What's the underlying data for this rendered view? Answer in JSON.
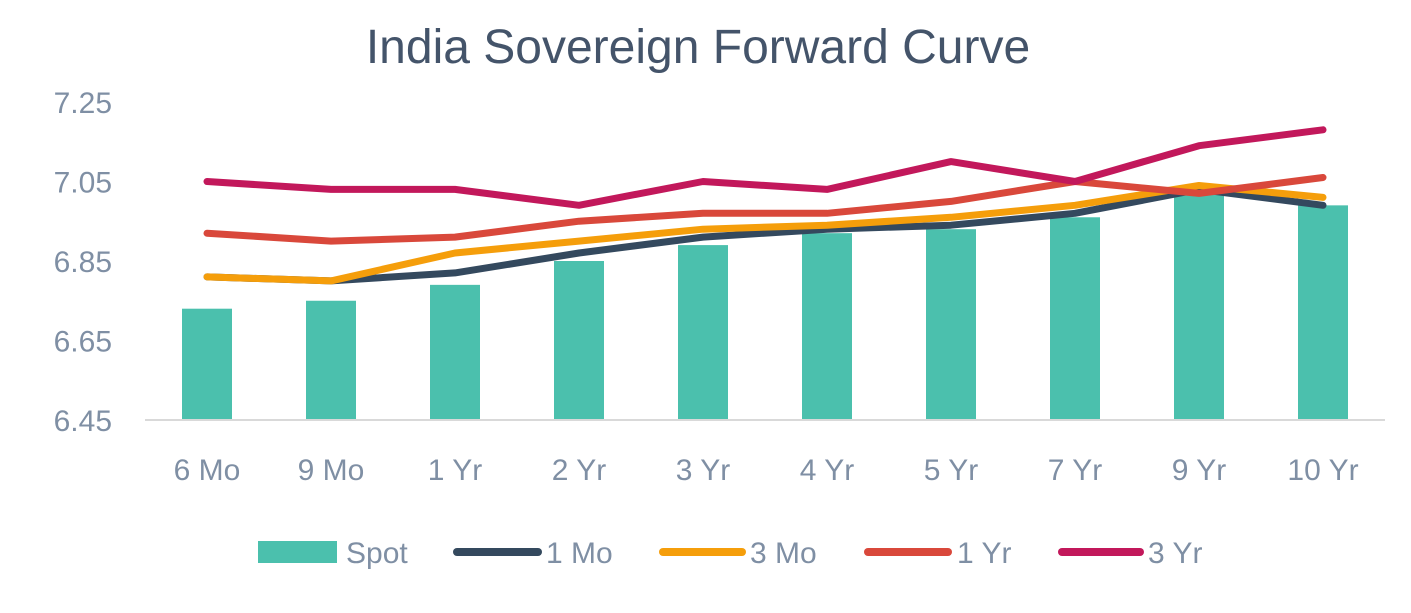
{
  "chart_data": {
    "type": "bar",
    "title": "India Sovereign Forward Curve",
    "xlabel": "",
    "ylabel": "",
    "ylim": [
      6.45,
      7.25
    ],
    "yticks": [
      "7.25",
      "7.05",
      "6.85",
      "6.65",
      "6.45"
    ],
    "categories": [
      "6 Mo",
      "9 Mo",
      "1 Yr",
      "2 Yr",
      "3 Yr",
      "4 Yr",
      "5 Yr",
      "7 Yr",
      "9 Yr",
      "10 Yr"
    ],
    "grid": false,
    "legend_position": "bottom",
    "series": [
      {
        "name": "Spot",
        "kind": "bar",
        "color": "#4bc0ad",
        "values": [
          6.73,
          6.75,
          6.79,
          6.85,
          6.89,
          6.92,
          6.93,
          6.96,
          7.02,
          6.99
        ]
      },
      {
        "name": "1 Mo",
        "kind": "line",
        "color": "#34495e",
        "values": [
          6.81,
          6.8,
          6.82,
          6.87,
          6.91,
          6.93,
          6.94,
          6.97,
          7.03,
          6.99
        ]
      },
      {
        "name": "3 Mo",
        "kind": "line",
        "color": "#f59e0b",
        "values": [
          6.81,
          6.8,
          6.87,
          6.9,
          6.93,
          6.94,
          6.96,
          6.99,
          7.04,
          7.01
        ]
      },
      {
        "name": "1 Yr",
        "kind": "line",
        "color": "#d9483b",
        "values": [
          6.92,
          6.9,
          6.91,
          6.95,
          6.97,
          6.97,
          7.0,
          7.05,
          7.02,
          7.06
        ]
      },
      {
        "name": "3 Yr",
        "kind": "line",
        "color": "#c2185b",
        "values": [
          7.05,
          7.03,
          7.03,
          6.99,
          7.05,
          7.03,
          7.1,
          7.05,
          7.14,
          7.18
        ]
      }
    ]
  }
}
